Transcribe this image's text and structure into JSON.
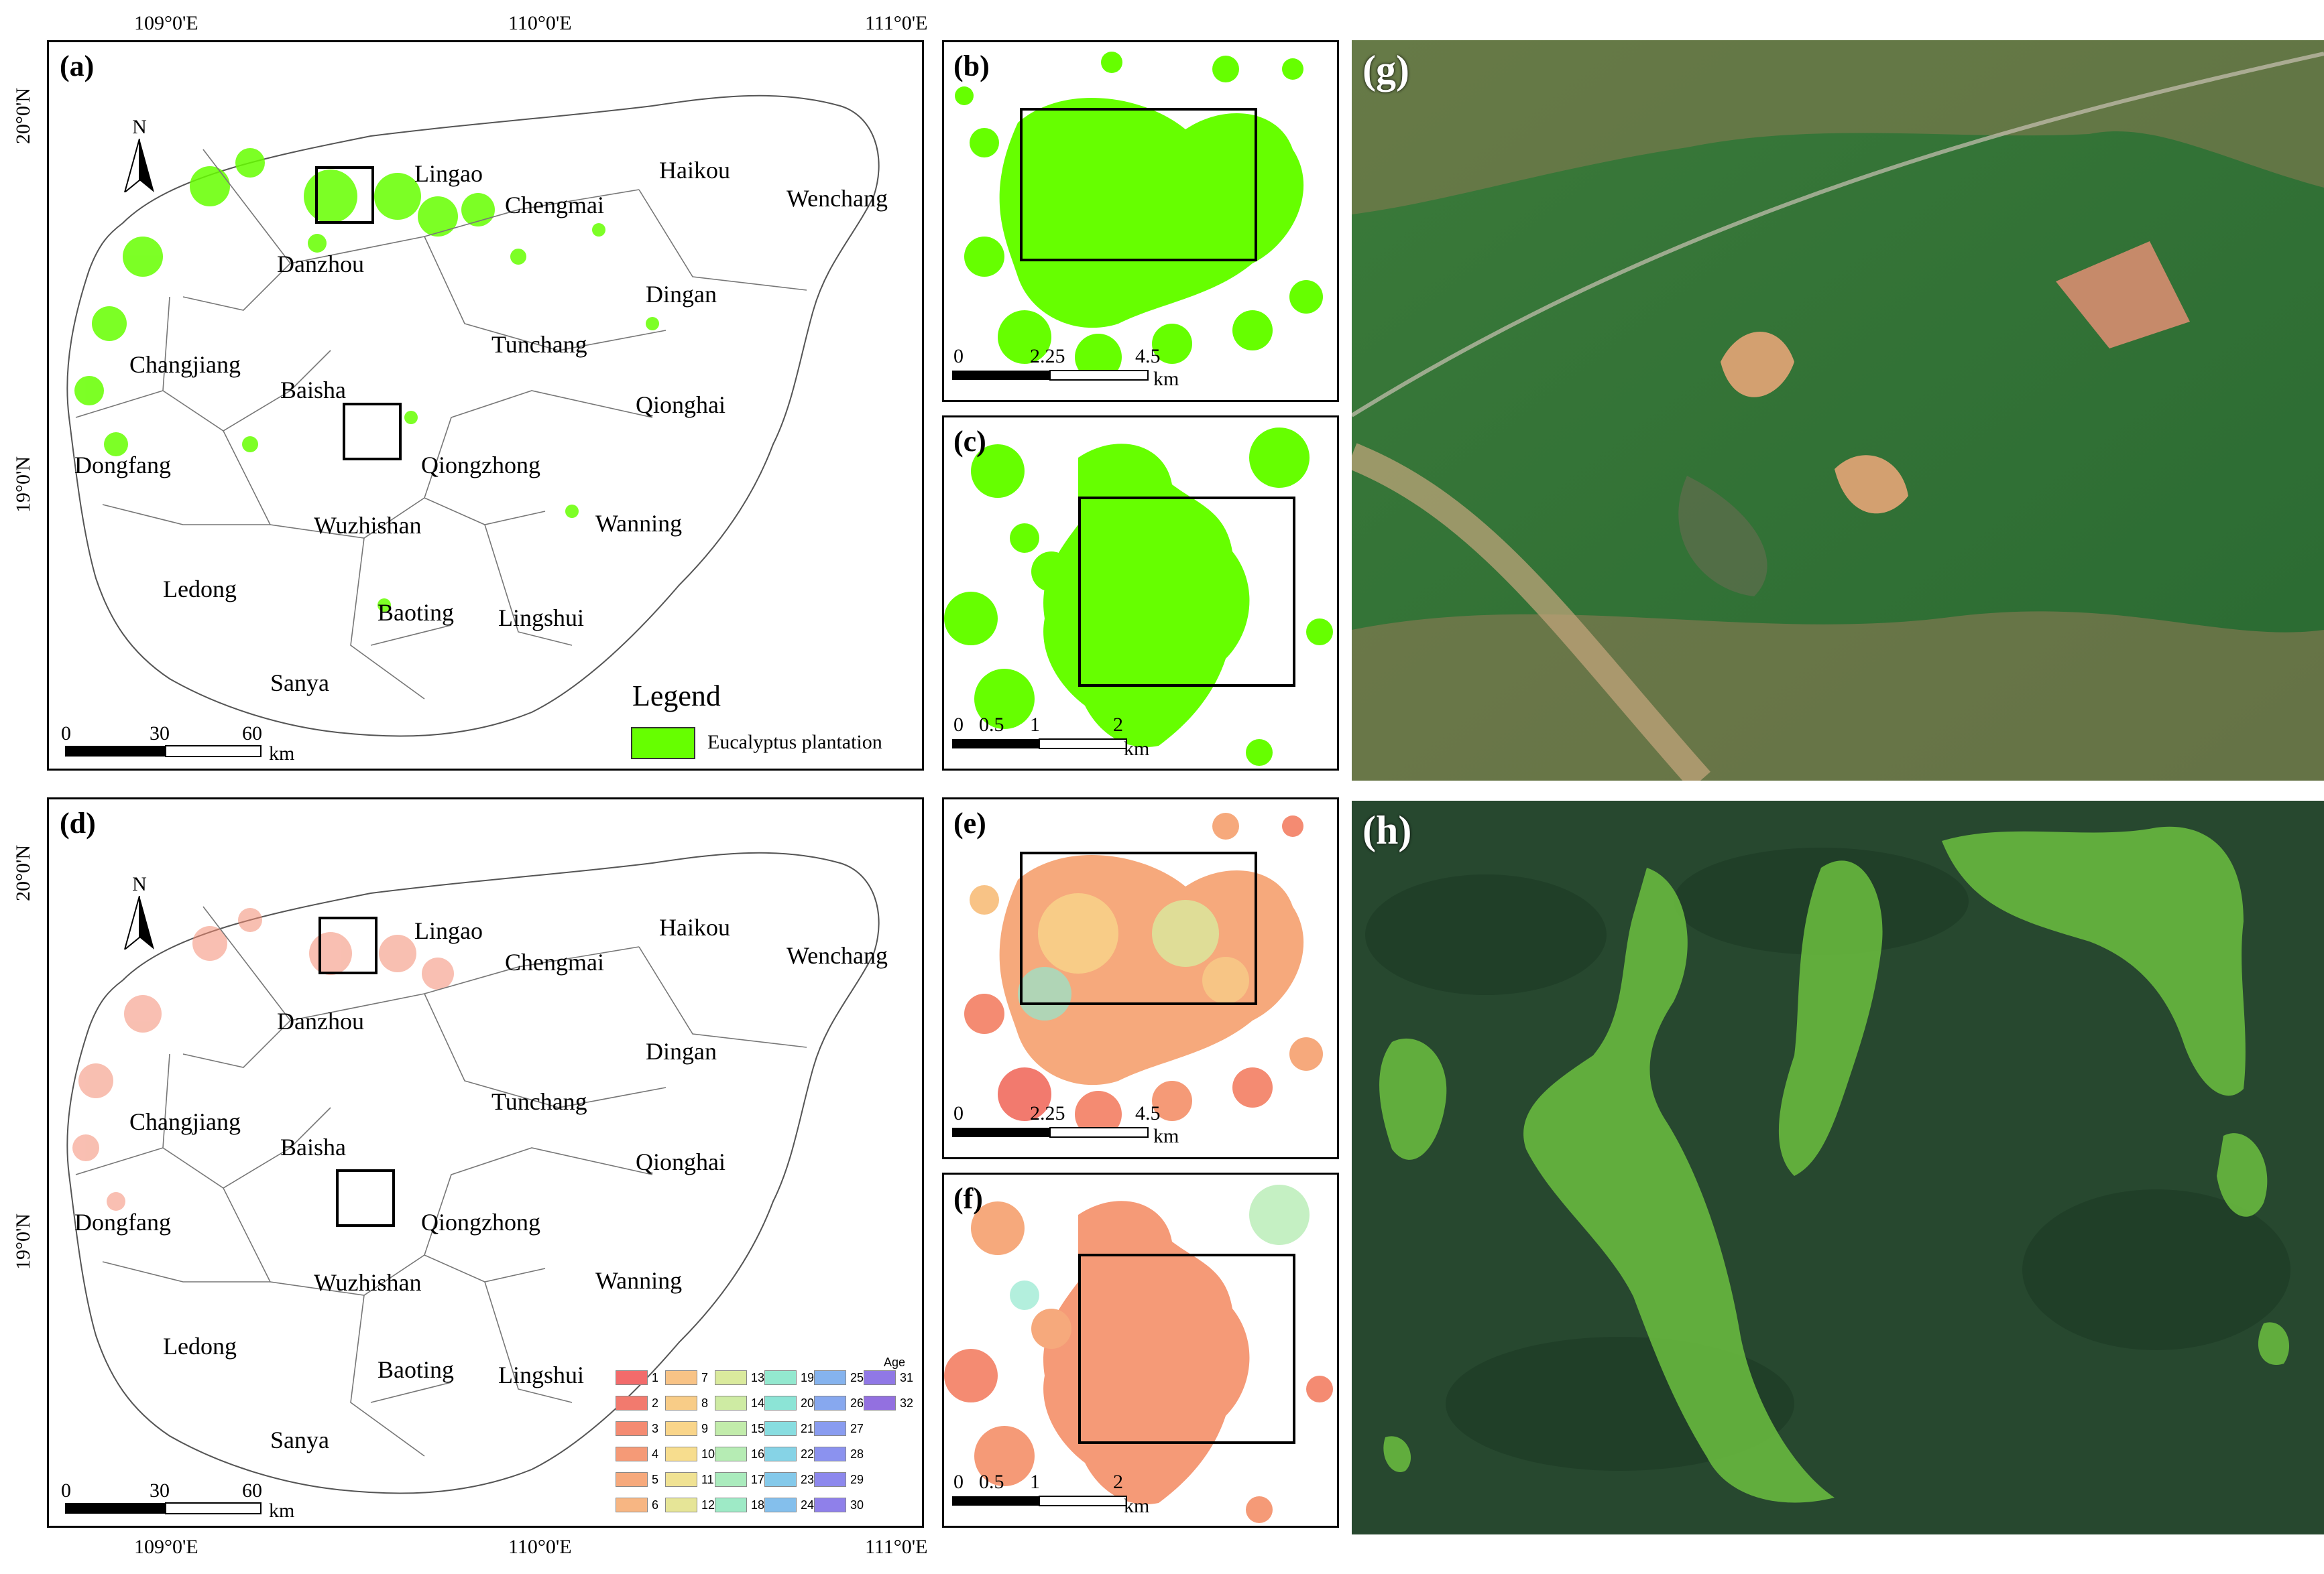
{
  "panels": {
    "a": "(a)",
    "b": "(b)",
    "c": "(c)",
    "d": "(d)",
    "e": "(e)",
    "f": "(f)",
    "g": "(g)",
    "h": "(h)"
  },
  "coords": {
    "top_lon": [
      "109°0'E",
      "110°0'E",
      "111°0'E"
    ],
    "bottom_lon": [
      "109°0'E",
      "110°0'E",
      "111°0'E"
    ],
    "lat_top_map": [
      "20°0'N",
      "19°0'N"
    ],
    "lat_bottom_map": [
      "20°0'N",
      "19°0'N"
    ]
  },
  "places": [
    "Lingao",
    "Haikou",
    "Chengmai",
    "Wenchang",
    "Danzhou",
    "Dingan",
    "Tunchang",
    "Changjiang",
    "Baisha",
    "Qionghai",
    "Dongfang",
    "Qiongzhong",
    "Wanning",
    "Wuzhishan",
    "Ledong",
    "Baoting",
    "Lingshui",
    "Sanya"
  ],
  "north": "N",
  "scalebars": {
    "main": {
      "labels": [
        "0",
        "30",
        "60"
      ],
      "unit": "km"
    },
    "be": {
      "labels": [
        "0",
        "2.25",
        "4.5"
      ],
      "unit": "km"
    },
    "cf": {
      "labels": [
        "0",
        "0.5",
        "1",
        "2"
      ],
      "unit": "km"
    }
  },
  "legend": {
    "title": "Legend",
    "item": "Eucalyptus plantation",
    "color": "#66ff00"
  },
  "age_legend": {
    "title": "Age",
    "values": [
      "1",
      "2",
      "3",
      "4",
      "5",
      "6",
      "7",
      "8",
      "9",
      "10",
      "11",
      "12",
      "13",
      "14",
      "15",
      "16",
      "17",
      "18",
      "19",
      "20",
      "21",
      "22",
      "23",
      "24",
      "25",
      "26",
      "27",
      "28",
      "29",
      "30",
      "31",
      "32"
    ],
    "colors": [
      "#f26b6b",
      "#f27a6e",
      "#f48b72",
      "#f59a77",
      "#f6a97c",
      "#f7b683",
      "#f8c386",
      "#f8cc87",
      "#f9d58a",
      "#f7dd8e",
      "#f0e293",
      "#e6e597",
      "#daea9d",
      "#ceeba3",
      "#c2ecab",
      "#b6ecb4",
      "#aaebbd",
      "#9eeac6",
      "#93e8cf",
      "#8ce4d6",
      "#88dde0",
      "#86d3e6",
      "#84c9ea",
      "#84bfec",
      "#85b3ee",
      "#87a8ef",
      "#899cf0",
      "#8b92ef",
      "#8d88ed",
      "#8f80ea",
      "#9078e6",
      "#9370e0"
    ]
  }
}
